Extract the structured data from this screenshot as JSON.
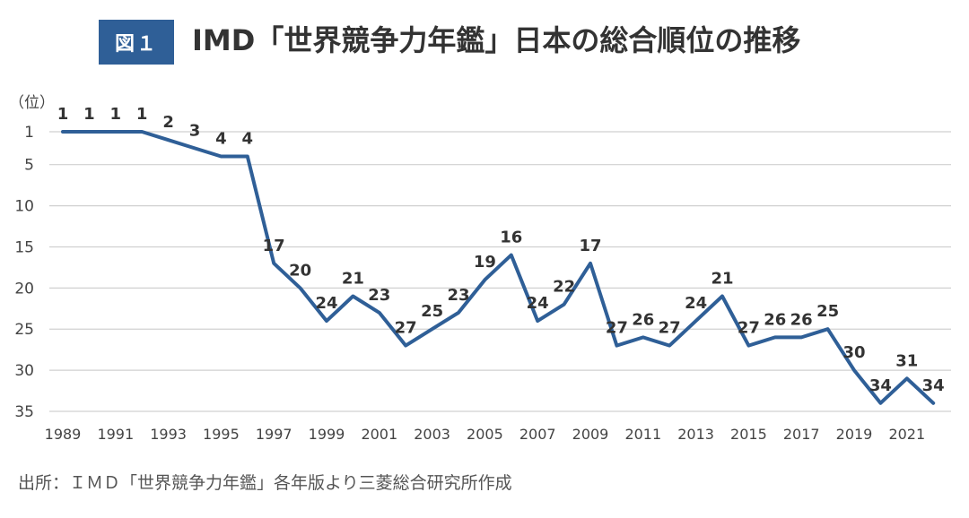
{
  "header": {
    "badge": "図１",
    "title": "IMD「世界競争力年鑑」日本の総合順位の推移"
  },
  "source": "出所：ＩＭＤ「世界競争力年鑑」各年版より三菱総合研究所作成",
  "chart_data": {
    "type": "line",
    "title": "IMD「世界競争力年鑑」日本の総合順位の推移",
    "ylabel": "（位）",
    "xlabel": "",
    "y_inverted": true,
    "ylim": [
      1,
      35
    ],
    "yticks": [
      1,
      5,
      10,
      15,
      20,
      25,
      30,
      35
    ],
    "xticks": [
      1989,
      1991,
      1993,
      1995,
      1997,
      1999,
      2001,
      2003,
      2005,
      2007,
      2009,
      2011,
      2013,
      2015,
      2017,
      2019,
      2021
    ],
    "x": [
      1989,
      1990,
      1991,
      1992,
      1993,
      1994,
      1995,
      1996,
      1997,
      1998,
      1999,
      2000,
      2001,
      2002,
      2003,
      2004,
      2005,
      2006,
      2007,
      2008,
      2009,
      2010,
      2011,
      2012,
      2013,
      2014,
      2015,
      2016,
      2017,
      2018,
      2019,
      2020,
      2021,
      2022
    ],
    "values": [
      1,
      1,
      1,
      1,
      2,
      3,
      4,
      4,
      17,
      20,
      24,
      21,
      23,
      27,
      25,
      23,
      19,
      16,
      24,
      22,
      17,
      27,
      26,
      27,
      24,
      21,
      27,
      26,
      26,
      25,
      30,
      34,
      31,
      34
    ],
    "line_color": "#2f5f97",
    "grid": true,
    "data_labels": true
  }
}
